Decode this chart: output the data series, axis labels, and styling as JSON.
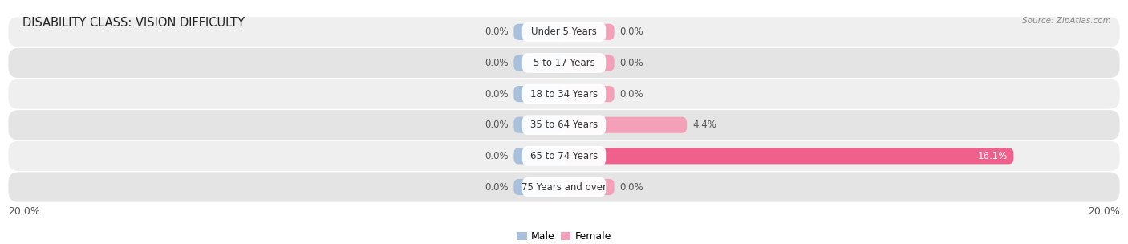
{
  "title": "DISABILITY CLASS: VISION DIFFICULTY",
  "source": "Source: ZipAtlas.com",
  "categories": [
    "Under 5 Years",
    "5 to 17 Years",
    "18 to 34 Years",
    "35 to 64 Years",
    "65 to 74 Years",
    "75 Years and over"
  ],
  "male_values": [
    0.0,
    0.0,
    0.0,
    0.0,
    0.0,
    0.0
  ],
  "female_values": [
    0.0,
    0.0,
    0.0,
    4.4,
    16.1,
    0.0
  ],
  "male_color": "#a8c0dc",
  "female_color": "#f4a0b8",
  "female_color_hot": "#f0608c",
  "row_bg_even": "#efefef",
  "row_bg_odd": "#e4e4e4",
  "x_max": 20.0,
  "x_left_label": "20.0%",
  "x_right_label": "20.0%",
  "title_fontsize": 10.5,
  "label_fontsize": 8.5,
  "tick_fontsize": 9,
  "min_bar_width": 1.8
}
